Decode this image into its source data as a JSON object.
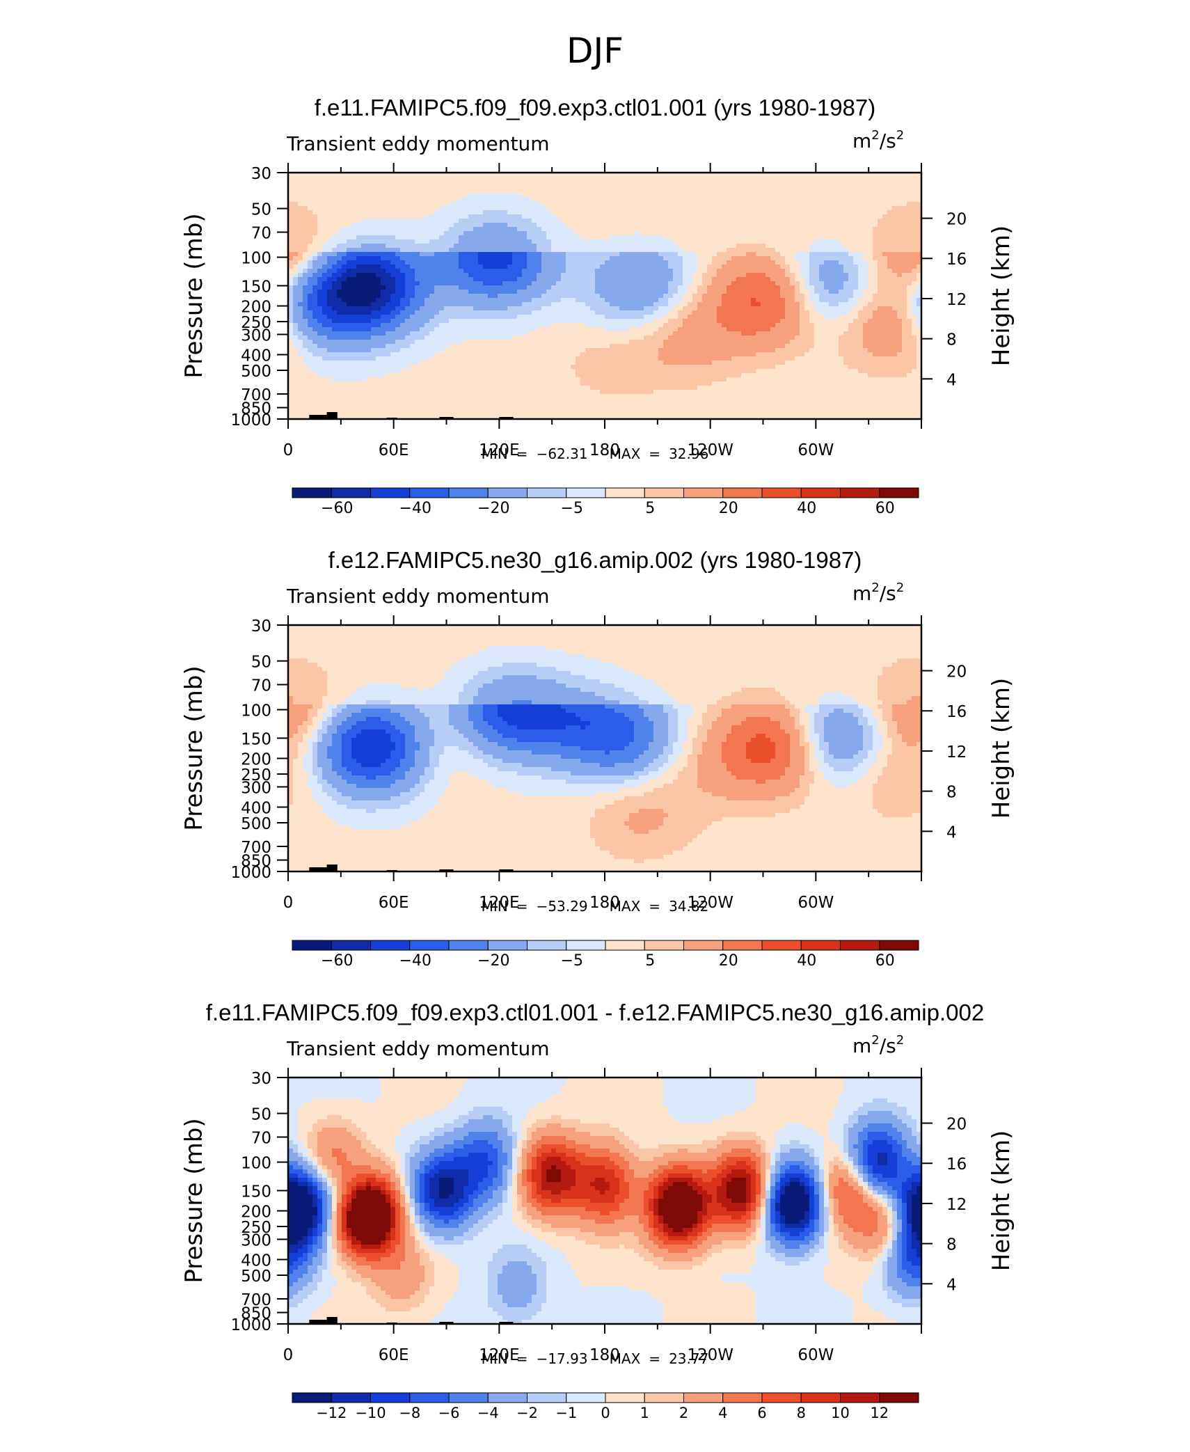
{
  "figure": {
    "title": "DJF"
  },
  "colors": {
    "palette": [
      "#0a1a78",
      "#0f2ba8",
      "#1540d8",
      "#2a5ee8",
      "#4f82ea",
      "#86a9ee",
      "#b8cdf6",
      "#dbe8fb",
      "#fde3cc",
      "#fbc6a6",
      "#f6a07c",
      "#f27751",
      "#ec4f2b",
      "#d8321a",
      "#b51a10",
      "#7e0a06"
    ],
    "terrain": "#000000"
  },
  "chart_data": [
    {
      "type": "heatmap",
      "title": "f.e11.FAMIPC5.f09_f09.exp3.ctl01.001 (yrs 1980-1987)",
      "field_label": "Transient eddy momentum",
      "units_base": "m",
      "units_exp1": "2",
      "units_mid": "/s",
      "units_exp2": "2",
      "ylabel": "Pressure (mb)",
      "y2label": "Height (km)",
      "x_tick_labels": [
        "0",
        "60E",
        "120E",
        "180",
        "120W",
        "60W"
      ],
      "y_tick_labels": [
        "30",
        "50",
        "70",
        "100",
        "150",
        "200",
        "250",
        "300",
        "400",
        "500",
        "700",
        "850",
        "1000"
      ],
      "y2_tick_labels": [
        "20",
        "16",
        "12",
        "8",
        "4"
      ],
      "stats": {
        "min_label": "MIN",
        "eq1": "=",
        "min": "−62.31",
        "max_label": "MAX",
        "eq2": "=",
        "max": "32.96"
      },
      "colorbar_labels": [
        "−60",
        "−40",
        "−20",
        "−5",
        "5",
        "20",
        "40",
        "60"
      ],
      "features": [
        {
          "lon": 45,
          "p": 150,
          "value": -62
        },
        {
          "lon": 15,
          "p": 200,
          "value": -30
        },
        {
          "lon": 118,
          "p": 100,
          "value": -45
        },
        {
          "lon": 200,
          "p": 150,
          "value": -22
        },
        {
          "lon": 305,
          "p": 150,
          "value": -25
        },
        {
          "lon": 273,
          "p": 180,
          "value": 33
        },
        {
          "lon": 345,
          "p": 250,
          "value": 22
        },
        {
          "lon": 5,
          "p": 100,
          "value": 10
        },
        {
          "lon": 358,
          "p": 100,
          "value": 12
        },
        {
          "lon": 222,
          "p": 330,
          "value": 8
        },
        {
          "lon": 235,
          "p": 260,
          "value": 6
        },
        {
          "lon": 180,
          "p": 450,
          "value": 5
        }
      ]
    },
    {
      "type": "heatmap",
      "title": "f.e12.FAMIPC5.ne30_g16.amip.002 (yrs 1980-1987)",
      "field_label": "Transient eddy momentum",
      "units_base": "m",
      "units_exp1": "2",
      "units_mid": "/s",
      "units_exp2": "2",
      "ylabel": "Pressure (mb)",
      "y2label": "Height (km)",
      "x_tick_labels": [
        "0",
        "60E",
        "120E",
        "180",
        "120W",
        "60W"
      ],
      "y_tick_labels": [
        "30",
        "50",
        "70",
        "100",
        "150",
        "200",
        "250",
        "300",
        "400",
        "500",
        "700",
        "850",
        "1000"
      ],
      "y2_tick_labels": [
        "20",
        "16",
        "12",
        "8",
        "4"
      ],
      "stats": {
        "min_label": "MIN",
        "eq1": "=",
        "min": "−53.29",
        "max_label": "MAX",
        "eq2": "=",
        "max": "34.82"
      },
      "colorbar_labels": [
        "−60",
        "−40",
        "−20",
        "−5",
        "5",
        "20",
        "40",
        "60"
      ],
      "features": [
        {
          "lon": 48,
          "p": 170,
          "value": -53
        },
        {
          "lon": 125,
          "p": 100,
          "value": -40
        },
        {
          "lon": 190,
          "p": 150,
          "value": -30
        },
        {
          "lon": 160,
          "p": 110,
          "value": -22
        },
        {
          "lon": 312,
          "p": 150,
          "value": -28
        },
        {
          "lon": 275,
          "p": 170,
          "value": 35
        },
        {
          "lon": 345,
          "p": 250,
          "value": 10
        },
        {
          "lon": 350,
          "p": 100,
          "value": 10
        },
        {
          "lon": 8,
          "p": 100,
          "value": 10
        },
        {
          "lon": 85,
          "p": 160,
          "value": 8
        },
        {
          "lon": 200,
          "p": 450,
          "value": 10
        },
        {
          "lon": 236,
          "p": 230,
          "value": 6
        }
      ]
    },
    {
      "type": "heatmap",
      "title": "f.e11.FAMIPC5.f09_f09.exp3.ctl01.001 - f.e12.FAMIPC5.ne30_g16.amip.002",
      "field_label": "Transient eddy momentum",
      "units_base": "m",
      "units_exp1": "2",
      "units_mid": "/s",
      "units_exp2": "2",
      "ylabel": "Pressure (mb)",
      "y2label": "Height (km)",
      "x_tick_labels": [
        "0",
        "60E",
        "120E",
        "180",
        "120W",
        "60W"
      ],
      "y_tick_labels": [
        "30",
        "50",
        "70",
        "100",
        "150",
        "200",
        "250",
        "300",
        "400",
        "500",
        "700",
        "850",
        "1000"
      ],
      "y2_tick_labels": [
        "20",
        "16",
        "12",
        "8",
        "4"
      ],
      "stats": {
        "min_label": "MIN",
        "eq1": "=",
        "min": "−17.93",
        "max_label": "MAX",
        "eq2": "=",
        "max": "23.77"
      },
      "colorbar_labels": [
        "−12",
        "−10",
        "−8",
        "−6",
        "−4",
        "−2",
        "−1",
        "0",
        "1",
        "2",
        "4",
        "6",
        "8",
        "10",
        "12"
      ],
      "features": [
        {
          "lon": 5,
          "p": 190,
          "value": -18
        },
        {
          "lon": 45,
          "p": 210,
          "value": 24
        },
        {
          "lon": 27,
          "p": 100,
          "value": 6
        },
        {
          "lon": 35,
          "p": 150,
          "value": -6
        },
        {
          "lon": 88,
          "p": 150,
          "value": -12
        },
        {
          "lon": 112,
          "p": 100,
          "value": -8
        },
        {
          "lon": 150,
          "p": 120,
          "value": 12
        },
        {
          "lon": 180,
          "p": 140,
          "value": 10
        },
        {
          "lon": 222,
          "p": 190,
          "value": 18
        },
        {
          "lon": 258,
          "p": 150,
          "value": 14
        },
        {
          "lon": 287,
          "p": 180,
          "value": -17
        },
        {
          "lon": 318,
          "p": 150,
          "value": 8
        },
        {
          "lon": 335,
          "p": 100,
          "value": -12
        },
        {
          "lon": 355,
          "p": 380,
          "value": -8
        },
        {
          "lon": 340,
          "p": 250,
          "value": 6
        },
        {
          "lon": 65,
          "p": 500,
          "value": 3
        },
        {
          "lon": 130,
          "p": 600,
          "value": -3
        }
      ]
    }
  ]
}
